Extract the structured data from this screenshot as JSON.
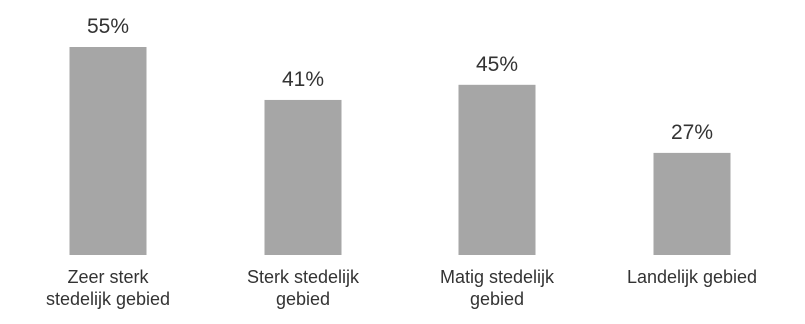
{
  "chart_data": {
    "type": "bar",
    "categories": [
      [
        "Zeer sterk",
        "stedelijk gebied"
      ],
      [
        "Sterk stedelijk",
        "gebied"
      ],
      [
        "Matig stedelijk",
        "gebied"
      ],
      [
        "Landelijk gebied"
      ]
    ],
    "values": [
      55,
      41,
      45,
      27
    ],
    "value_labels": [
      "55%",
      "41%",
      "45%",
      "27%"
    ],
    "ylim": [
      0,
      60
    ],
    "grid": false,
    "legend": "none",
    "colors": {
      "bar": "#a6a6a6",
      "text": "#333333"
    }
  }
}
